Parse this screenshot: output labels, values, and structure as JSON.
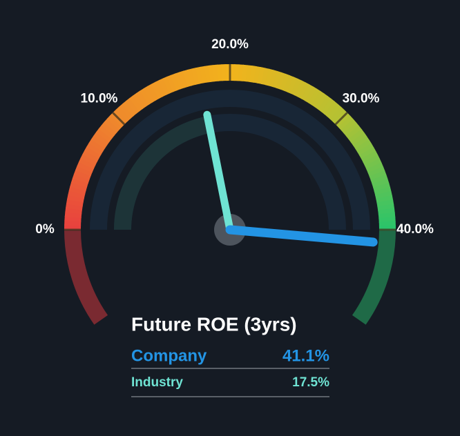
{
  "chart_data": {
    "type": "gauge",
    "title": "Future ROE (3yrs)",
    "ylim": [
      0,
      40
    ],
    "yticks": [
      {
        "value": 0,
        "label": "0%"
      },
      {
        "value": 10,
        "label": "10.0%"
      },
      {
        "value": 20,
        "label": "20.0%"
      },
      {
        "value": 30,
        "label": "30.0%"
      },
      {
        "value": 40,
        "label": "40.0%"
      }
    ],
    "series": [
      {
        "name": "Company",
        "color": "#2394e4",
        "values": [
          41.1
        ],
        "value_labels": [
          "41.1%"
        ]
      },
      {
        "name": "Industry",
        "color": "#6fe3d3",
        "values": [
          17.5
        ],
        "value_labels": [
          "17.5%"
        ]
      }
    ]
  }
}
